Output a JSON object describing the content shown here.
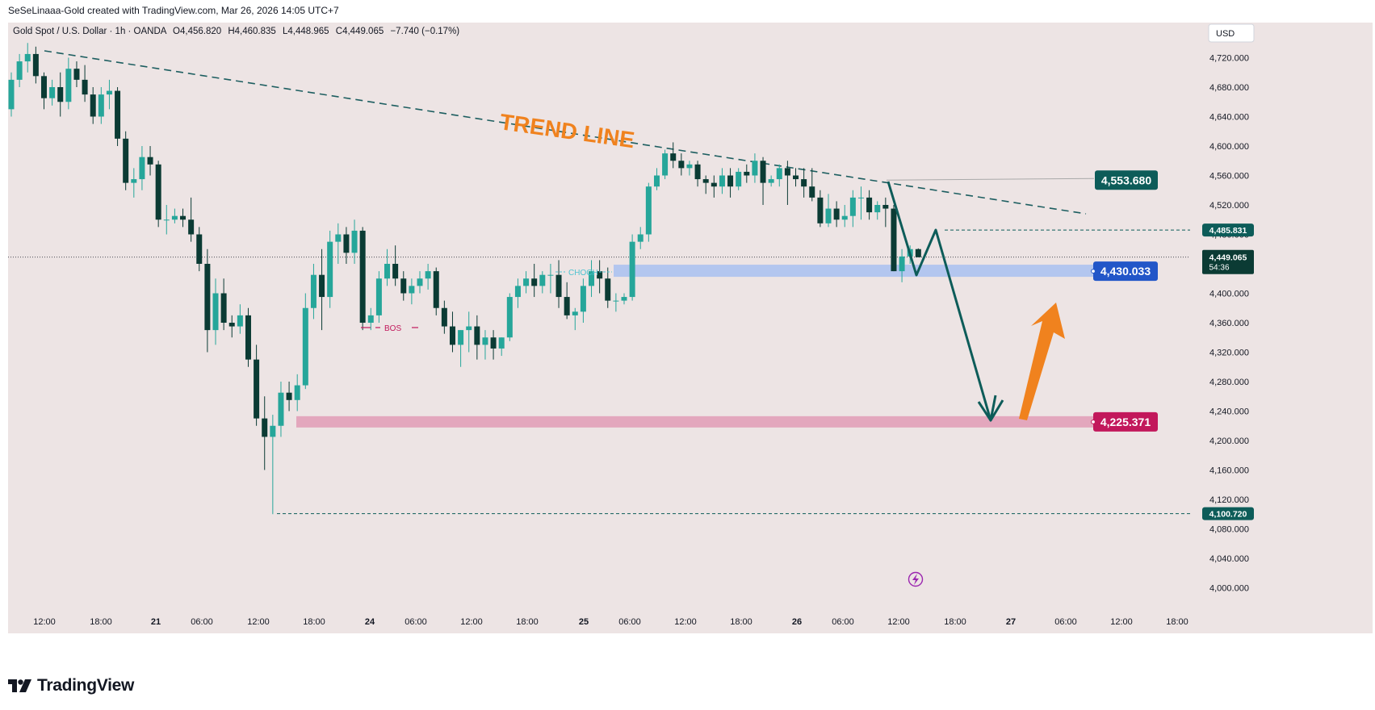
{
  "header": {
    "creator_line": "SeSeLinaaa-Gold created with TradingView.com, Mar 26, 2026 14:05 UTC+7"
  },
  "symbol_line": {
    "name": "Gold Spot / U.S. Dollar · 1h · OANDA",
    "open": "O4,456.820",
    "high": "H4,460.835",
    "low": "L4,448.965",
    "close": "C4,449.065",
    "change": "−7.740 (−0.17%)"
  },
  "currency_button": "USD",
  "footer": {
    "brand": "TradingView"
  },
  "colors": {
    "up": "#26a69a",
    "down": "#0b3b34",
    "background": "#ede4e4",
    "trendline": "#1d5e60",
    "orange": "#f0821e",
    "teal_badge": "#0d5c59",
    "blue_zone": "#b3c6ef",
    "blue_badge": "#2256c8",
    "pink_zone": "#e3a7bd",
    "pink_badge": "#c2185b",
    "bos": "#c2185b",
    "choch": "#4fc3d0"
  },
  "chart_data": {
    "type": "candlestick",
    "instrument": "Gold Spot / U.S. Dollar",
    "interval": "1h",
    "ylim": [
      4000,
      4750
    ],
    "y_ticks": [
      4000,
      4040,
      4080,
      4120,
      4160,
      4200,
      4240,
      4280,
      4320,
      4360,
      4400,
      4440,
      4480,
      4520,
      4560,
      4600,
      4640,
      4680,
      4720
    ],
    "y_tick_labels": [
      "4,000.000",
      "4,040.000",
      "4,080.000",
      "4,120.000",
      "4,160.000",
      "4,200.000",
      "4,240.000",
      "4,280.000",
      "4,320.000",
      "4,360.000",
      "4,400.000",
      "4,440.000",
      "4,480.000",
      "4,520.000",
      "4,560.000",
      "4,600.000",
      "4,640.000",
      "4,680.000",
      "4,720.000"
    ],
    "x_labels": [
      "12:00",
      "18:00",
      "21",
      "06:00",
      "12:00",
      "18:00",
      "24",
      "06:00",
      "12:00",
      "18:00",
      "25",
      "06:00",
      "12:00",
      "18:00",
      "26",
      "06:00",
      "12:00",
      "18:00",
      "27",
      "06:00",
      "12:00",
      "18:00"
    ],
    "candles": [
      [
        4650,
        4700,
        4640,
        4690
      ],
      [
        4690,
        4725,
        4680,
        4715
      ],
      [
        4715,
        4740,
        4700,
        4725
      ],
      [
        4725,
        4735,
        4685,
        4695
      ],
      [
        4695,
        4700,
        4650,
        4665
      ],
      [
        4665,
        4690,
        4655,
        4680
      ],
      [
        4680,
        4700,
        4640,
        4660
      ],
      [
        4660,
        4720,
        4650,
        4705
      ],
      [
        4705,
        4715,
        4680,
        4690
      ],
      [
        4690,
        4710,
        4660,
        4670
      ],
      [
        4670,
        4680,
        4630,
        4640
      ],
      [
        4640,
        4680,
        4630,
        4670
      ],
      [
        4670,
        4690,
        4650,
        4675
      ],
      [
        4675,
        4680,
        4600,
        4610
      ],
      [
        4610,
        4620,
        4540,
        4550
      ],
      [
        4550,
        4570,
        4530,
        4555
      ],
      [
        4555,
        4600,
        4540,
        4585
      ],
      [
        4585,
        4600,
        4560,
        4575
      ],
      [
        4575,
        4580,
        4490,
        4500
      ],
      [
        4500,
        4520,
        4480,
        4500
      ],
      [
        4500,
        4515,
        4495,
        4505
      ],
      [
        4505,
        4515,
        4490,
        4500
      ],
      [
        4500,
        4530,
        4470,
        4480
      ],
      [
        4480,
        4490,
        4430,
        4440
      ],
      [
        4440,
        4460,
        4320,
        4350
      ],
      [
        4350,
        4420,
        4330,
        4400
      ],
      [
        4400,
        4420,
        4350,
        4360
      ],
      [
        4360,
        4370,
        4340,
        4355
      ],
      [
        4355,
        4385,
        4345,
        4370
      ],
      [
        4370,
        4380,
        4300,
        4310
      ],
      [
        4310,
        4330,
        4220,
        4230
      ],
      [
        4230,
        4260,
        4160,
        4205
      ],
      [
        4205,
        4235,
        4100,
        4220
      ],
      [
        4220,
        4280,
        4205,
        4265
      ],
      [
        4265,
        4280,
        4240,
        4255
      ],
      [
        4255,
        4290,
        4240,
        4275
      ],
      [
        4275,
        4400,
        4270,
        4380
      ],
      [
        4380,
        4440,
        4365,
        4425
      ],
      [
        4425,
        4460,
        4350,
        4395
      ],
      [
        4395,
        4485,
        4380,
        4470
      ],
      [
        4470,
        4495,
        4440,
        4480
      ],
      [
        4480,
        4490,
        4440,
        4455
      ],
      [
        4455,
        4500,
        4440,
        4485
      ],
      [
        4485,
        4490,
        4350,
        4360
      ],
      [
        4360,
        4380,
        4350,
        4370
      ],
      [
        4370,
        4430,
        4360,
        4420
      ],
      [
        4420,
        4460,
        4410,
        4440
      ],
      [
        4440,
        4465,
        4410,
        4420
      ],
      [
        4420,
        4430,
        4390,
        4400
      ],
      [
        4400,
        4420,
        4385,
        4410
      ],
      [
        4410,
        4430,
        4400,
        4420
      ],
      [
        4420,
        4440,
        4405,
        4430
      ],
      [
        4430,
        4435,
        4370,
        4380
      ],
      [
        4380,
        4390,
        4345,
        4355
      ],
      [
        4355,
        4375,
        4320,
        4330
      ],
      [
        4330,
        4350,
        4300,
        4350
      ],
      [
        4350,
        4375,
        4320,
        4355
      ],
      [
        4355,
        4370,
        4310,
        4330
      ],
      [
        4330,
        4350,
        4310,
        4340
      ],
      [
        4340,
        4350,
        4310,
        4325
      ],
      [
        4325,
        4340,
        4315,
        4340
      ],
      [
        4340,
        4400,
        4335,
        4395
      ],
      [
        4395,
        4420,
        4380,
        4410
      ],
      [
        4410,
        4430,
        4400,
        4420
      ],
      [
        4420,
        4440,
        4395,
        4410
      ],
      [
        4410,
        4430,
        4400,
        4425
      ],
      [
        4425,
        4440,
        4400,
        4425
      ],
      [
        4425,
        4445,
        4380,
        4395
      ],
      [
        4395,
        4415,
        4365,
        4370
      ],
      [
        4370,
        4380,
        4350,
        4375
      ],
      [
        4375,
        4420,
        4360,
        4410
      ],
      [
        4410,
        4445,
        4395,
        4430
      ],
      [
        4430,
        4445,
        4400,
        4420
      ],
      [
        4420,
        4435,
        4380,
        4390
      ],
      [
        4390,
        4400,
        4375,
        4390
      ],
      [
        4390,
        4400,
        4385,
        4395
      ],
      [
        4395,
        4480,
        4390,
        4470
      ],
      [
        4470,
        4490,
        4460,
        4480
      ],
      [
        4480,
        4550,
        4470,
        4545
      ],
      [
        4545,
        4570,
        4540,
        4560
      ],
      [
        4560,
        4595,
        4555,
        4590
      ],
      [
        4590,
        4605,
        4570,
        4580
      ],
      [
        4580,
        4590,
        4560,
        4570
      ],
      [
        4570,
        4580,
        4560,
        4575
      ],
      [
        4575,
        4580,
        4545,
        4555
      ],
      [
        4555,
        4560,
        4535,
        4550
      ],
      [
        4550,
        4560,
        4530,
        4545
      ],
      [
        4545,
        4570,
        4535,
        4560
      ],
      [
        4560,
        4570,
        4530,
        4545
      ],
      [
        4545,
        4570,
        4540,
        4565
      ],
      [
        4565,
        4575,
        4550,
        4560
      ],
      [
        4560,
        4590,
        4550,
        4580
      ],
      [
        4580,
        4585,
        4520,
        4550
      ],
      [
        4550,
        4560,
        4545,
        4555
      ],
      [
        4555,
        4575,
        4545,
        4570
      ],
      [
        4570,
        4580,
        4520,
        4560
      ],
      [
        4560,
        4570,
        4545,
        4555
      ],
      [
        4555,
        4570,
        4530,
        4545
      ],
      [
        4545,
        4570,
        4525,
        4530
      ],
      [
        4530,
        4540,
        4490,
        4495
      ],
      [
        4495,
        4535,
        4490,
        4515
      ],
      [
        4515,
        4525,
        4490,
        4500
      ],
      [
        4500,
        4520,
        4490,
        4505
      ],
      [
        4505,
        4540,
        4490,
        4530
      ],
      [
        4530,
        4545,
        4500,
        4530
      ],
      [
        4530,
        4540,
        4500,
        4510
      ],
      [
        4510,
        4525,
        4500,
        4520
      ],
      [
        4520,
        4530,
        4490,
        4515
      ],
      [
        4515,
        4520,
        4430,
        4430
      ],
      [
        4430,
        4460,
        4415,
        4450
      ],
      [
        4450,
        4465,
        4440,
        4460
      ],
      [
        4460,
        4461,
        4449,
        4449
      ]
    ],
    "last_price": "4,449.065",
    "countdown": "54:36",
    "annotations": {
      "trend_line": "TREND LINE",
      "bos": "BOS",
      "choch": "CHOCH",
      "levels": [
        {
          "label": "4,553.680",
          "value": 4553.68
        },
        {
          "label": "4,485.831",
          "value": 4485.831
        },
        {
          "label": "4,430.033",
          "value": 4430.033
        },
        {
          "label": "4,225.371",
          "value": 4225.371
        },
        {
          "label": "4,100.720",
          "value": 4100.72
        }
      ]
    }
  }
}
